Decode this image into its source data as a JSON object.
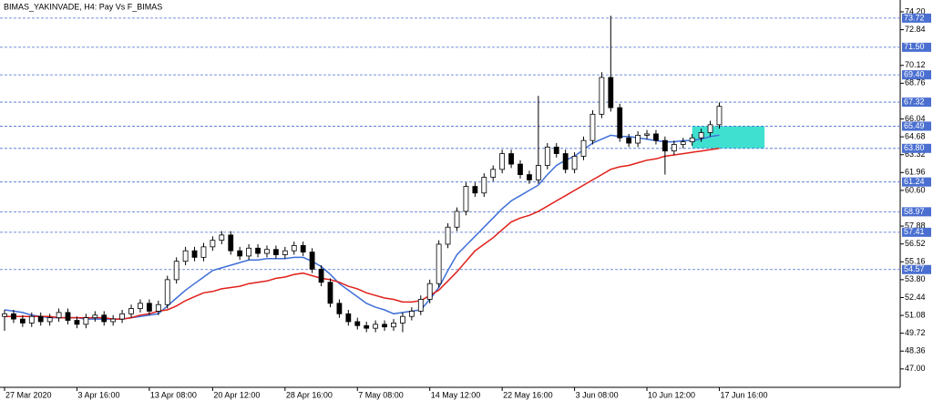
{
  "chart_data": {
    "type": "candlestick",
    "title": "BIMAS_YAKINVADE, H4:  Pay Vs F_BIMAS",
    "categories": [
      "27 Mar 2020",
      null,
      null,
      null,
      null,
      null,
      null,
      null,
      "3 Apr 16:00",
      null,
      null,
      null,
      null,
      null,
      null,
      null,
      "13 Apr 08:00",
      null,
      null,
      null,
      null,
      null,
      null,
      "20 Apr 12:00",
      null,
      null,
      null,
      null,
      null,
      null,
      null,
      "28 Apr 16:00",
      null,
      null,
      null,
      null,
      null,
      null,
      null,
      "7 May 08:00",
      null,
      null,
      null,
      null,
      null,
      null,
      null,
      "14 May 12:00",
      null,
      null,
      null,
      null,
      null,
      null,
      null,
      "22 May 16:00",
      null,
      null,
      null,
      null,
      null,
      null,
      null,
      "3 Jun 08:00",
      null,
      null,
      null,
      null,
      null,
      null,
      null,
      "10 Jun 12:00",
      null,
      null,
      null,
      null,
      null,
      null,
      null,
      "17 Jun 16:00"
    ],
    "open": [
      51.0,
      51.2,
      50.8,
      50.5,
      51.0,
      50.6,
      50.9,
      51.3,
      50.7,
      50.4,
      50.9,
      51.1,
      50.6,
      50.8,
      51.2,
      51.6,
      52.0,
      51.4,
      51.9,
      53.8,
      55.2,
      56.0,
      55.5,
      56.3,
      56.8,
      57.2,
      56.0,
      55.6,
      56.2,
      55.8,
      56.1,
      55.7,
      56.0,
      56.4,
      55.9,
      54.6,
      53.6,
      52.0,
      51.2,
      50.6,
      50.3,
      50.1,
      50.4,
      50.2,
      50.5,
      51.0,
      51.4,
      52.3,
      53.5,
      56.5,
      57.8,
      59.0,
      60.9,
      60.4,
      61.6,
      62.2,
      63.4,
      62.6,
      61.8,
      61.4,
      62.5,
      63.9,
      63.4,
      62.2,
      63.2,
      64.4,
      66.4,
      69.2,
      66.9,
      64.6,
      64.2,
      64.8,
      64.9,
      64.4,
      63.6,
      64.1,
      64.3,
      64.6,
      65.0,
      65.6
    ],
    "high": [
      51.5,
      51.5,
      51.1,
      51.3,
      51.3,
      51.2,
      51.6,
      51.6,
      51.0,
      51.2,
      51.4,
      51.4,
      51.1,
      51.5,
      51.9,
      52.3,
      52.3,
      52.2,
      54.1,
      55.5,
      56.3,
      56.3,
      56.6,
      57.1,
      57.5,
      57.5,
      56.3,
      56.5,
      56.5,
      56.4,
      56.4,
      56.3,
      56.7,
      56.7,
      56.2,
      54.9,
      53.9,
      52.3,
      51.5,
      50.9,
      50.6,
      50.7,
      50.7,
      50.8,
      51.3,
      51.7,
      52.6,
      53.8,
      56.8,
      58.1,
      59.3,
      61.2,
      61.2,
      61.9,
      62.5,
      63.7,
      63.7,
      62.9,
      62.1,
      67.8,
      64.2,
      64.2,
      63.7,
      63.5,
      64.7,
      66.7,
      69.6,
      73.9,
      67.2,
      64.9,
      65.1,
      65.2,
      65.2,
      64.7,
      64.4,
      64.6,
      64.9,
      65.3,
      65.9,
      67.3
    ],
    "low": [
      49.9,
      50.5,
      50.2,
      50.2,
      50.3,
      50.3,
      50.6,
      50.4,
      50.1,
      50.1,
      50.6,
      50.3,
      50.3,
      50.5,
      50.9,
      51.3,
      51.1,
      51.1,
      51.6,
      53.5,
      54.9,
      55.2,
      55.2,
      56.0,
      56.5,
      55.7,
      55.3,
      55.3,
      55.5,
      55.5,
      55.4,
      55.4,
      55.7,
      55.6,
      54.3,
      53.3,
      51.7,
      50.9,
      50.3,
      50.0,
      49.8,
      49.8,
      49.9,
      49.9,
      49.8,
      50.7,
      51.1,
      52.0,
      53.2,
      56.2,
      57.5,
      58.7,
      60.1,
      60.1,
      61.3,
      61.9,
      62.3,
      61.5,
      61.1,
      61.1,
      62.2,
      63.1,
      61.9,
      61.9,
      62.9,
      64.1,
      66.1,
      66.6,
      64.3,
      63.9,
      63.9,
      64.5,
      64.1,
      61.8,
      63.3,
      63.8,
      64.0,
      64.3,
      64.7,
      65.3
    ],
    "close": [
      51.2,
      50.8,
      50.5,
      51.0,
      50.6,
      50.9,
      51.3,
      50.7,
      50.4,
      50.9,
      51.1,
      50.6,
      50.8,
      51.2,
      51.6,
      52.0,
      51.4,
      51.9,
      53.8,
      55.2,
      56.0,
      55.5,
      56.3,
      56.8,
      57.2,
      56.0,
      55.6,
      56.2,
      55.8,
      56.1,
      55.7,
      56.0,
      56.4,
      55.9,
      54.6,
      53.6,
      52.0,
      51.2,
      50.6,
      50.3,
      50.1,
      50.4,
      50.2,
      50.5,
      51.0,
      51.4,
      52.3,
      53.5,
      56.5,
      57.8,
      59.0,
      60.9,
      60.4,
      61.6,
      62.2,
      63.4,
      62.6,
      61.8,
      61.4,
      62.5,
      63.9,
      63.4,
      62.2,
      63.2,
      64.4,
      66.4,
      69.2,
      66.9,
      64.6,
      64.2,
      64.8,
      64.9,
      64.4,
      63.6,
      64.1,
      64.3,
      64.6,
      65.0,
      65.6,
      67.0
    ],
    "lines": [
      {
        "color": "#3f6fd8",
        "values": [
          51.5,
          51.4,
          51.3,
          51.1,
          51.0,
          50.9,
          50.9,
          50.9,
          50.9,
          50.8,
          50.8,
          50.8,
          50.8,
          50.8,
          50.9,
          51.0,
          51.1,
          51.2,
          51.8,
          52.4,
          53.0,
          53.5,
          54.0,
          54.5,
          54.7,
          54.9,
          55.1,
          55.3,
          55.3,
          55.4,
          55.4,
          55.4,
          55.5,
          55.5,
          55.2,
          54.8,
          54.2,
          53.5,
          53.0,
          52.5,
          52.0,
          51.7,
          51.5,
          51.2,
          51.3,
          51.4,
          51.5,
          52.3,
          53.2,
          54.5,
          55.7,
          56.4,
          57.1,
          57.8,
          58.5,
          59.2,
          59.8,
          60.2,
          60.6,
          61.0,
          61.8,
          62.5,
          62.9,
          63.2,
          63.7,
          64.2,
          64.5,
          64.8,
          64.7,
          64.7,
          64.6,
          64.5,
          64.4,
          64.3,
          64.3,
          64.4,
          64.4,
          64.5,
          64.7,
          64.8
        ]
      },
      {
        "color": "#e0201a",
        "values": [
          51.0,
          51.0,
          51.0,
          51.0,
          51.0,
          51.0,
          50.9,
          50.9,
          50.9,
          50.9,
          50.9,
          50.9,
          50.8,
          50.8,
          50.9,
          51.1,
          51.2,
          51.4,
          51.5,
          51.8,
          52.2,
          52.5,
          52.8,
          52.9,
          53.1,
          53.2,
          53.3,
          53.5,
          53.6,
          53.7,
          53.9,
          54.0,
          54.2,
          54.3,
          54.1,
          53.9,
          53.8,
          53.6,
          53.3,
          53.1,
          52.8,
          52.6,
          52.4,
          52.3,
          52.1,
          52.1,
          52.2,
          52.6,
          53.0,
          53.7,
          54.4,
          55.2,
          56.0,
          56.5,
          57.0,
          57.6,
          58.2,
          58.5,
          58.7,
          59.0,
          59.4,
          59.8,
          60.2,
          60.6,
          61.0,
          61.4,
          61.8,
          62.2,
          62.4,
          62.5,
          62.7,
          62.9,
          63.0,
          63.2,
          63.3,
          63.4,
          63.5,
          63.6,
          63.7,
          63.8
        ]
      }
    ],
    "zone": {
      "x": [
        76,
        84
      ],
      "y": [
        63.8,
        65.49
      ],
      "color": "#40e0d0"
    },
    "ylim": [
      45.6,
      75.1
    ],
    "yticks": [
      {
        "value": 74.2,
        "label": "74.20"
      },
      72.84,
      70.12,
      68.76,
      66.04,
      64.68,
      63.32,
      61.96,
      {
        "value": 60.6,
        "label": "60.60"
      },
      57.88,
      56.52,
      55.16,
      {
        "value": 53.8,
        "label": "53.80"
      },
      52.44,
      51.08,
      49.72,
      48.36,
      {
        "value": 47.0,
        "label": "47.00"
      }
    ],
    "levels": [
      73.72,
      {
        "value": 71.5,
        "label": "71.50"
      },
      {
        "value": 69.4,
        "label": "69.40"
      },
      67.32,
      65.49,
      {
        "value": 63.8,
        "label": "63.80"
      },
      61.24,
      58.97,
      57.41,
      54.57
    ],
    "level_color": "#4a6fd0"
  }
}
